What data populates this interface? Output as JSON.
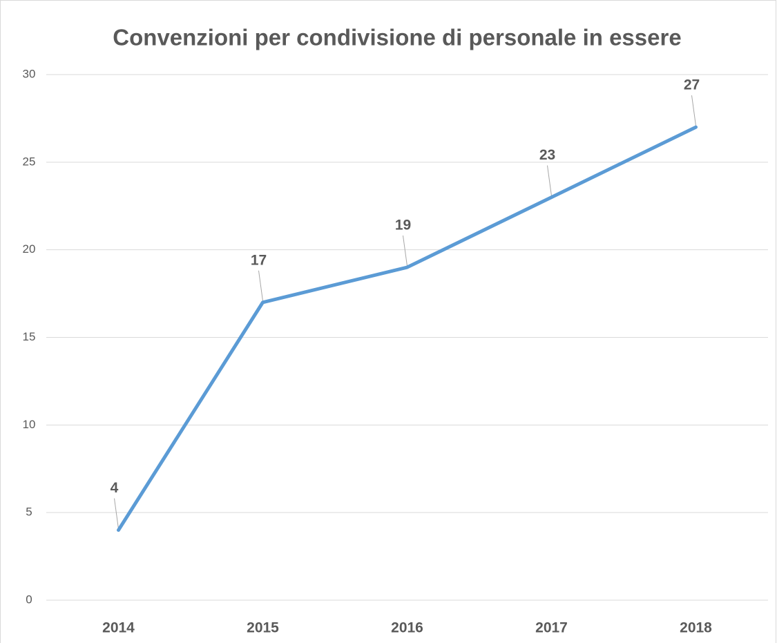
{
  "chart_data": {
    "type": "line",
    "title": "Convenzioni per condivisione di personale in essere",
    "categories": [
      "2014",
      "2015",
      "2016",
      "2017",
      "2018"
    ],
    "series": [
      {
        "color": "#5b9bd5",
        "values": [
          4,
          17,
          19,
          23,
          27
        ]
      }
    ],
    "ylim": [
      0,
      30
    ],
    "yticks": [
      0,
      5,
      10,
      15,
      20,
      25,
      30
    ],
    "grid": true
  }
}
